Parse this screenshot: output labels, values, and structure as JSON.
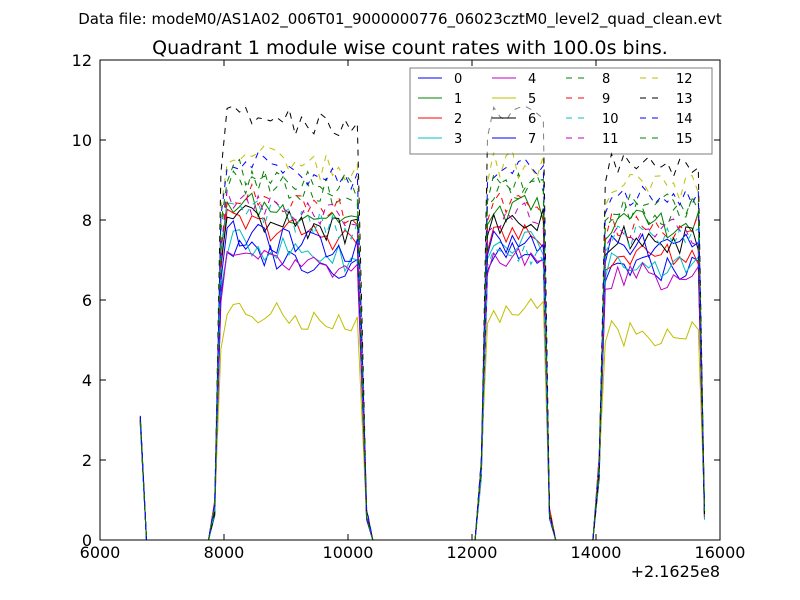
{
  "suptitle": "Data file: modeM0/AS1A02_006T01_9000000776_06023cztM0_level2_quad_clean.evt",
  "chart_data": {
    "type": "line",
    "title": "Quadrant 1 module wise count rates with 100.0s bins.",
    "xlabel": "",
    "ylabel": "",
    "x_offset_label": "+2.1625e8",
    "xlim": [
      6000,
      16000
    ],
    "ylim": [
      0,
      12
    ],
    "xticks": [
      6000,
      8000,
      10000,
      12000,
      14000,
      16000
    ],
    "yticks": [
      0,
      2,
      4,
      6,
      8,
      10,
      12
    ],
    "grid": false,
    "legend_position": "top-right",
    "legend_columns": 4,
    "segments": [
      {
        "start": 6700,
        "end": 10200,
        "bin": 100
      },
      {
        "start": 12250,
        "end": 13150,
        "bin": 100
      },
      {
        "start": 14150,
        "end": 15650,
        "bin": 100
      }
    ],
    "series": [
      {
        "name": "0",
        "color": "#0000ff",
        "dash": "solid",
        "levels": [
          6.8,
          7.1,
          6.8
        ]
      },
      {
        "name": "1",
        "color": "#008000",
        "dash": "solid",
        "levels": [
          8.0,
          8.3,
          7.9
        ]
      },
      {
        "name": "2",
        "color": "#ff0000",
        "dash": "solid",
        "levels": [
          7.5,
          7.6,
          7.1
        ]
      },
      {
        "name": "3",
        "color": "#00bfbf",
        "dash": "solid",
        "levels": [
          7.0,
          7.4,
          6.9
        ]
      },
      {
        "name": "4",
        "color": "#bf00bf",
        "dash": "solid",
        "levels": [
          6.6,
          7.0,
          6.6
        ]
      },
      {
        "name": "5",
        "color": "#bfbf00",
        "dash": "solid",
        "levels": [
          5.3,
          5.7,
          5.2
        ]
      },
      {
        "name": "6",
        "color": "#000000",
        "dash": "solid",
        "levels": [
          7.7,
          8.0,
          7.5
        ]
      },
      {
        "name": "7",
        "color": "#0000ff",
        "dash": "solid",
        "levels": [
          7.2,
          7.5,
          7.3
        ]
      },
      {
        "name": "8",
        "color": "#008000",
        "dash": "dashed",
        "levels": [
          8.6,
          8.8,
          8.2
        ]
      },
      {
        "name": "9",
        "color": "#ff0000",
        "dash": "dashed",
        "levels": [
          8.2,
          8.4,
          7.9
        ]
      },
      {
        "name": "10",
        "color": "#00bfbf",
        "dash": "dashed",
        "levels": [
          7.8,
          7.2,
          7.6
        ]
      },
      {
        "name": "11",
        "color": "#bf00bf",
        "dash": "dashed",
        "levels": [
          8.0,
          8.1,
          7.7
        ]
      },
      {
        "name": "12",
        "color": "#bfbf00",
        "dash": "dashed",
        "levels": [
          9.2,
          9.4,
          8.8
        ]
      },
      {
        "name": "13",
        "color": "#000000",
        "dash": "dashed",
        "levels": [
          10.2,
          10.6,
          9.4
        ]
      },
      {
        "name": "14",
        "color": "#0000ff",
        "dash": "dashed",
        "levels": [
          9.0,
          9.4,
          8.6
        ]
      },
      {
        "name": "15",
        "color": "#008000",
        "dash": "dashed",
        "levels": [
          8.8,
          8.9,
          8.4
        ]
      }
    ]
  }
}
